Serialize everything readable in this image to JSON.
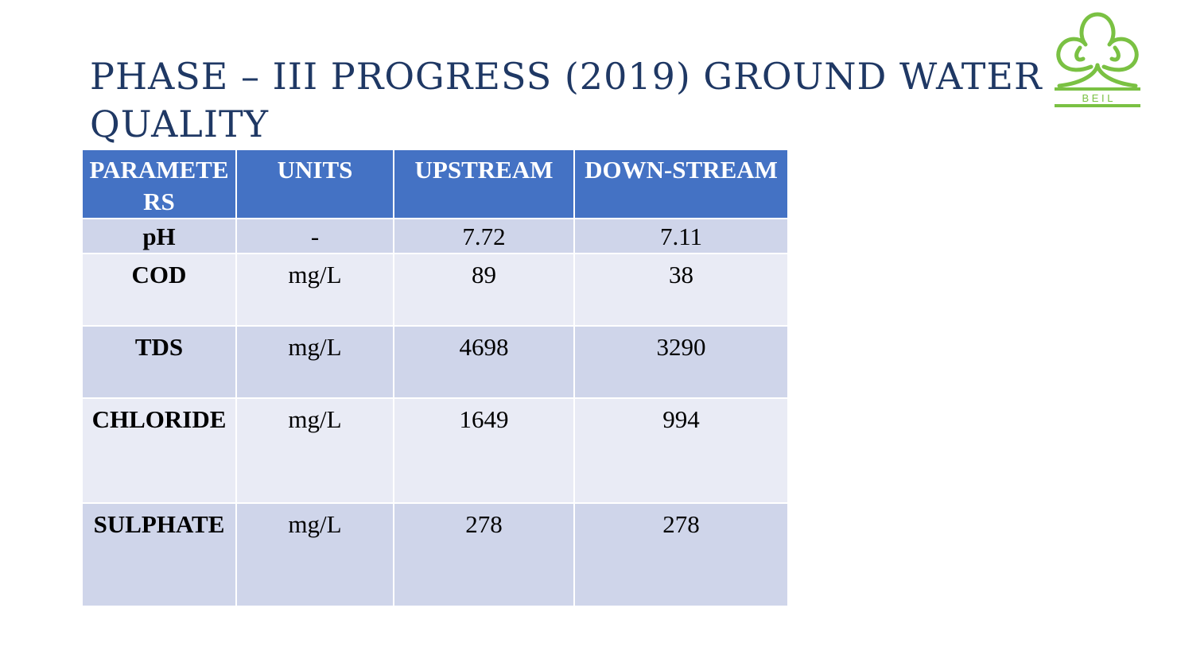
{
  "slide": {
    "title": "Phase – III Progress (2019) Ground Water Quality"
  },
  "logo": {
    "text": "B E I L",
    "color": "#7ac143"
  },
  "table": {
    "headers": [
      "PARAMETERS",
      "UNITS",
      "UPSTREAM",
      "DOWN-STREAM"
    ],
    "rows": [
      [
        "pH",
        "-",
        "7.72",
        "7.11"
      ],
      [
        "COD",
        "mg/L",
        "89",
        "38"
      ],
      [
        "TDS",
        "mg/L",
        "4698",
        "3290"
      ],
      [
        "CHLORIDE",
        "mg/L",
        "1649",
        "994"
      ],
      [
        "SULPHATE",
        "mg/L",
        "278",
        "278"
      ]
    ]
  },
  "colors": {
    "title": "#1f3864",
    "header_bg": "#4472c4",
    "row_dark": "#cfd5ea",
    "row_light": "#e9ebf5"
  }
}
